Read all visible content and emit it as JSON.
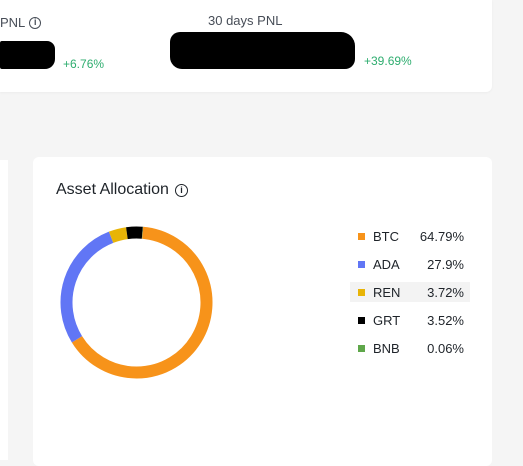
{
  "pnl": {
    "left_label": "PNL",
    "left_change": "+6.76%",
    "thirty_day_label": "30 days PNL",
    "thirty_day_change": "+39.69%"
  },
  "allocation": {
    "title": "Asset Allocation",
    "items": [
      {
        "asset": "BTC",
        "percent": "64.79%",
        "color": "#f7931a"
      },
      {
        "asset": "ADA",
        "percent": "27.9%",
        "color": "#6176f5"
      },
      {
        "asset": "REN",
        "percent": "3.72%",
        "color": "#e8b407"
      },
      {
        "asset": "GRT",
        "percent": "3.52%",
        "color": "#000000"
      },
      {
        "asset": "BNB",
        "percent": "0.06%",
        "color": "#5fa74a"
      }
    ]
  },
  "chart_data": {
    "type": "pie",
    "categories": [
      "BTC",
      "ADA",
      "REN",
      "GRT",
      "BNB"
    ],
    "values": [
      64.79,
      27.9,
      3.72,
      3.52,
      0.06
    ],
    "title": "Asset Allocation"
  }
}
